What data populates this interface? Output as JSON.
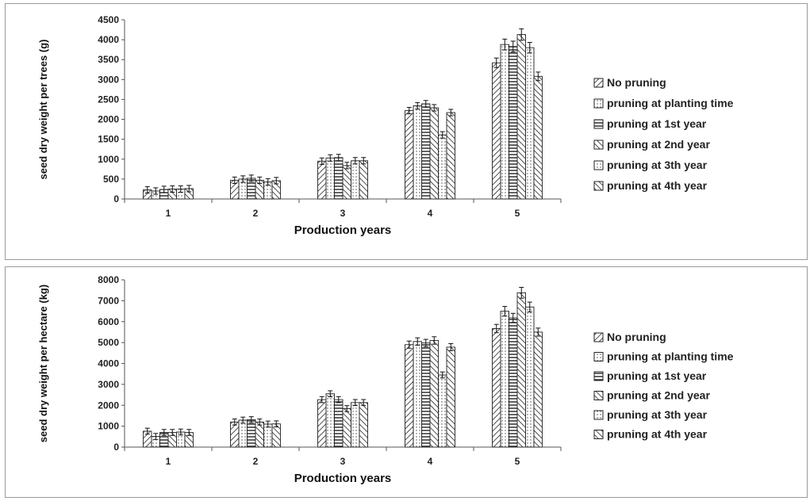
{
  "chart_data": [
    {
      "type": "bar",
      "xlabel": "Production years",
      "ylabel": "seed dry weight per trees (g)",
      "ylim": [
        0,
        4500
      ],
      "yticks": [
        0,
        500,
        1000,
        1500,
        2000,
        2500,
        3000,
        3500,
        4000,
        4500
      ],
      "categories": [
        "1",
        "2",
        "3",
        "4",
        "5"
      ],
      "legend_position": "right",
      "error_bars": true,
      "series": [
        {
          "name": "No pruning",
          "pattern": "diag-right",
          "values": [
            230,
            470,
            950,
            2220,
            3420
          ]
        },
        {
          "name": "pruning at planting time",
          "pattern": "dots",
          "values": [
            200,
            500,
            1030,
            2340,
            3880
          ]
        },
        {
          "name": "pruning at 1st year",
          "pattern": "horizontal",
          "values": [
            240,
            520,
            1040,
            2390,
            3830
          ]
        },
        {
          "name": "pruning at 2nd year",
          "pattern": "diag-left",
          "values": [
            250,
            470,
            840,
            2290,
            4130
          ]
        },
        {
          "name": "pruning at 3th year",
          "pattern": "dots",
          "values": [
            250,
            430,
            960,
            1610,
            3800
          ]
        },
        {
          "name": "pruning at 4th year",
          "pattern": "diag-left",
          "values": [
            260,
            460,
            960,
            2170,
            3080
          ]
        }
      ]
    },
    {
      "type": "bar",
      "xlabel": "Production years",
      "ylabel": "seed dry weight per hectare (kg)",
      "ylim": [
        0,
        8000
      ],
      "yticks": [
        0,
        1000,
        2000,
        3000,
        4000,
        5000,
        6000,
        7000,
        8000
      ],
      "categories": [
        "1",
        "2",
        "3",
        "4",
        "5"
      ],
      "legend_position": "right",
      "error_bars": true,
      "series": [
        {
          "name": "No pruning",
          "pattern": "diag-right",
          "values": [
            760,
            1200,
            2270,
            4900,
            5670
          ]
        },
        {
          "name": "pruning at planting time",
          "pattern": "dots",
          "values": [
            510,
            1290,
            2550,
            5050,
            6500
          ]
        },
        {
          "name": "pruning at 1st year",
          "pattern": "horizontal",
          "values": [
            700,
            1310,
            2270,
            4980,
            6180
          ]
        },
        {
          "name": "pruning at 2nd year",
          "pattern": "diag-left",
          "values": [
            700,
            1200,
            1840,
            5100,
            7380
          ]
        },
        {
          "name": "pruning at 3th year",
          "pattern": "dots",
          "values": [
            720,
            1100,
            2130,
            3450,
            6700
          ]
        },
        {
          "name": "pruning at 4th year",
          "pattern": "diag-left",
          "values": [
            700,
            1110,
            2130,
            4780,
            5500
          ]
        }
      ]
    }
  ]
}
